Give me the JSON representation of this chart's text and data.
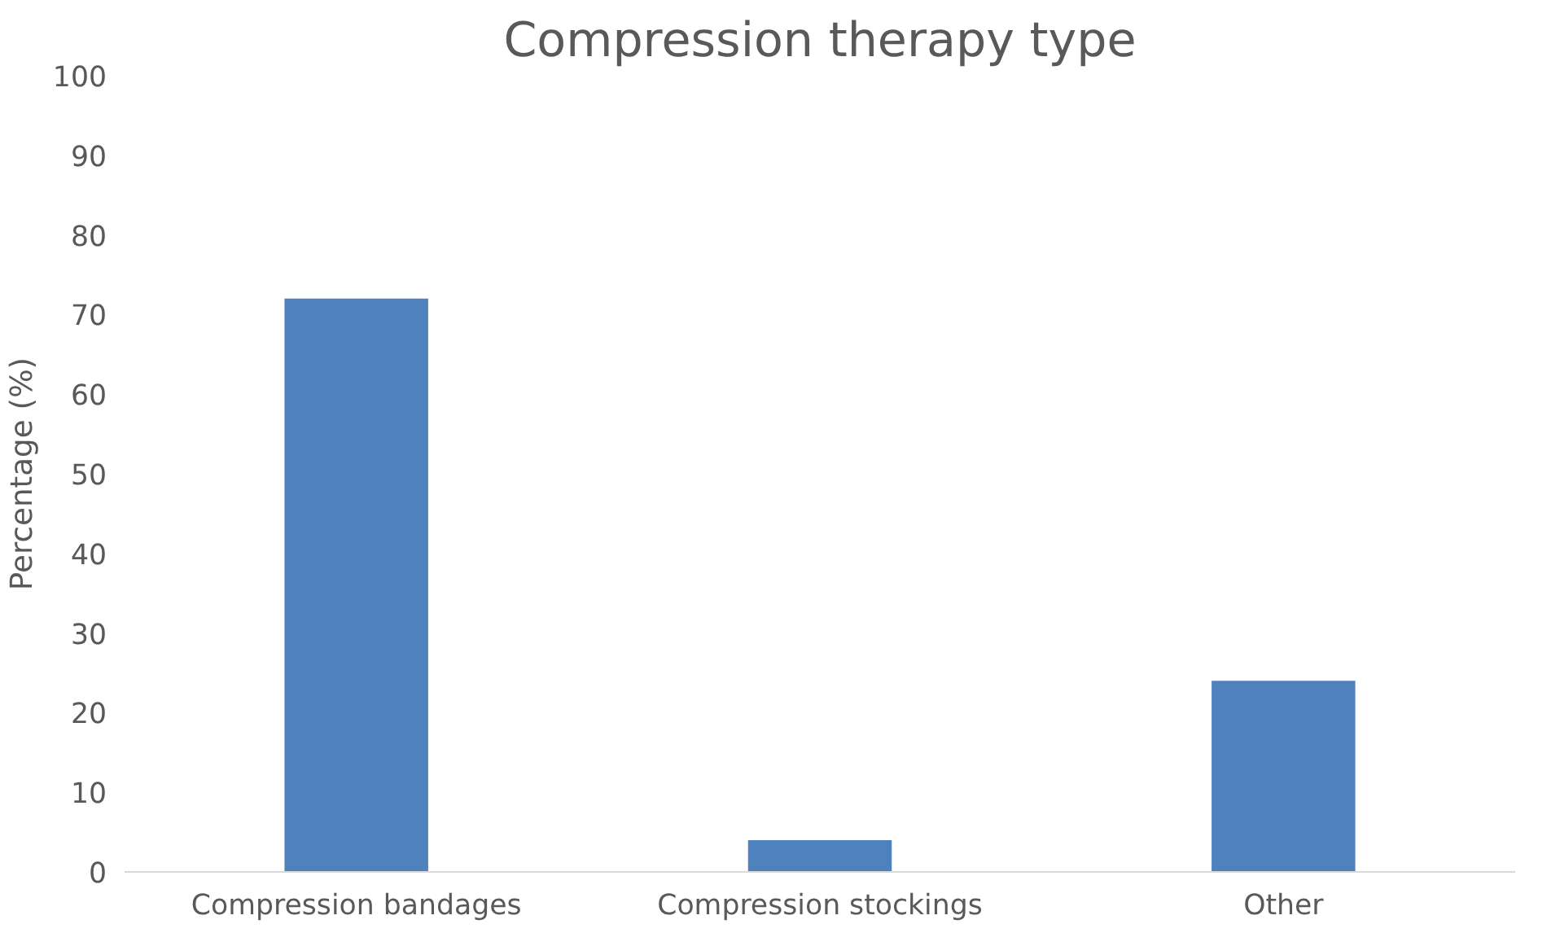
{
  "chart_data": {
    "type": "bar",
    "title": "Compression therapy type",
    "ylabel": "Percentage (%)",
    "categories": [
      "Compression bandages",
      "Compression stockings",
      "Other"
    ],
    "values": [
      72,
      4,
      24
    ],
    "color": "#4f81bd",
    "ylim": [
      0,
      100
    ],
    "yticks": [
      0,
      10,
      20,
      30,
      40,
      50,
      60,
      70,
      80,
      90,
      100
    ],
    "grid": false
  }
}
